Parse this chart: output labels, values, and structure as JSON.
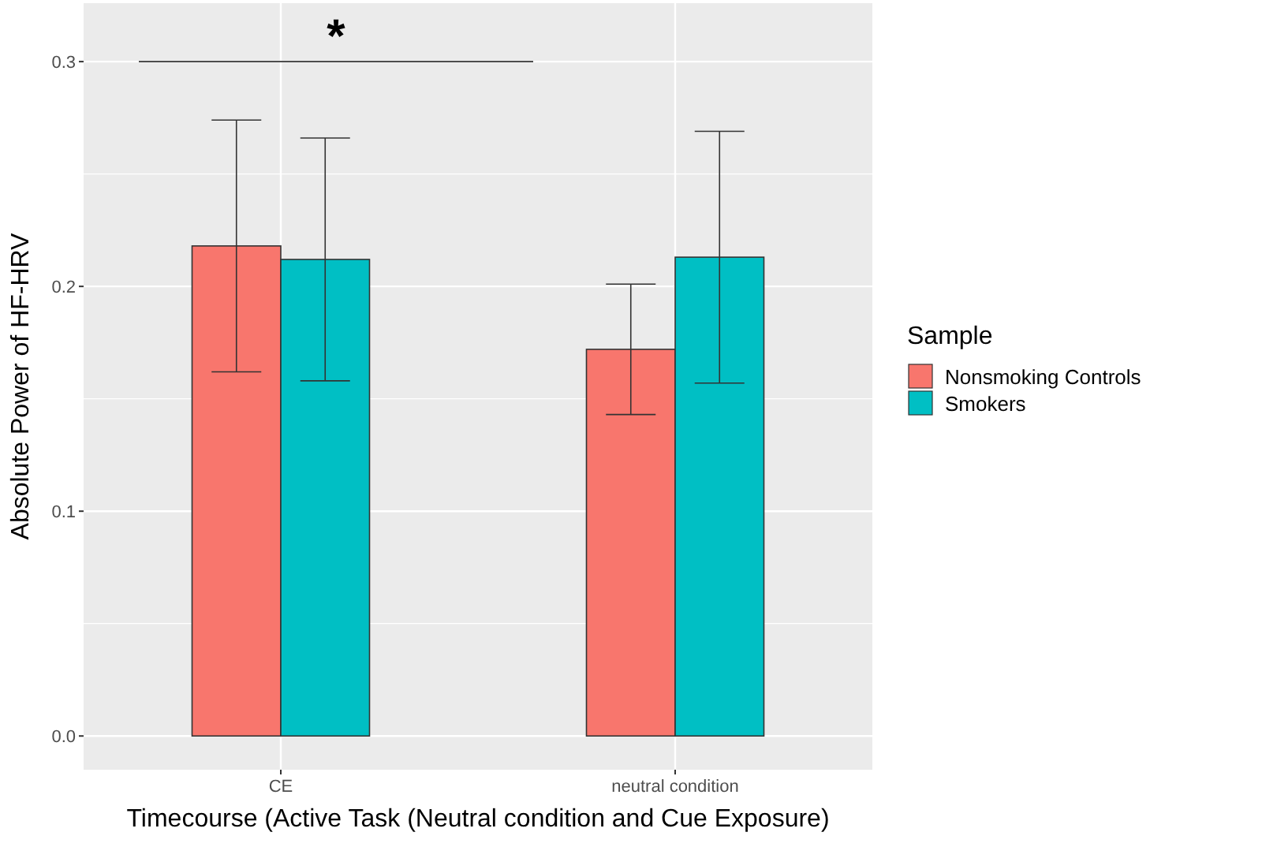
{
  "chart_data": {
    "type": "bar",
    "xlabel": "Timecourse (Active Task (Neutral condition and Cue Exposure)",
    "ylabel": "Absolute Power of HF-HRV",
    "legend_title": "Sample",
    "categories": [
      "CE",
      "neutral condition"
    ],
    "series": [
      {
        "name": "Nonsmoking Controls",
        "color": "#f8766d",
        "values": [
          0.218,
          0.172
        ],
        "errors": [
          [
            0.162,
            0.274
          ],
          [
            0.143,
            0.201
          ]
        ]
      },
      {
        "name": "Smokers",
        "color": "#00bfc4",
        "values": [
          0.212,
          0.213
        ],
        "errors": [
          [
            0.158,
            0.266
          ],
          [
            0.157,
            0.269
          ]
        ]
      }
    ],
    "ylim": [
      -0.015,
      0.326
    ],
    "yticks": [
      {
        "value": 0,
        "label": "0.0"
      },
      0.1,
      0.2,
      0.3
    ],
    "grid": true,
    "legend": "right",
    "annotations": [
      "*"
    ]
  }
}
